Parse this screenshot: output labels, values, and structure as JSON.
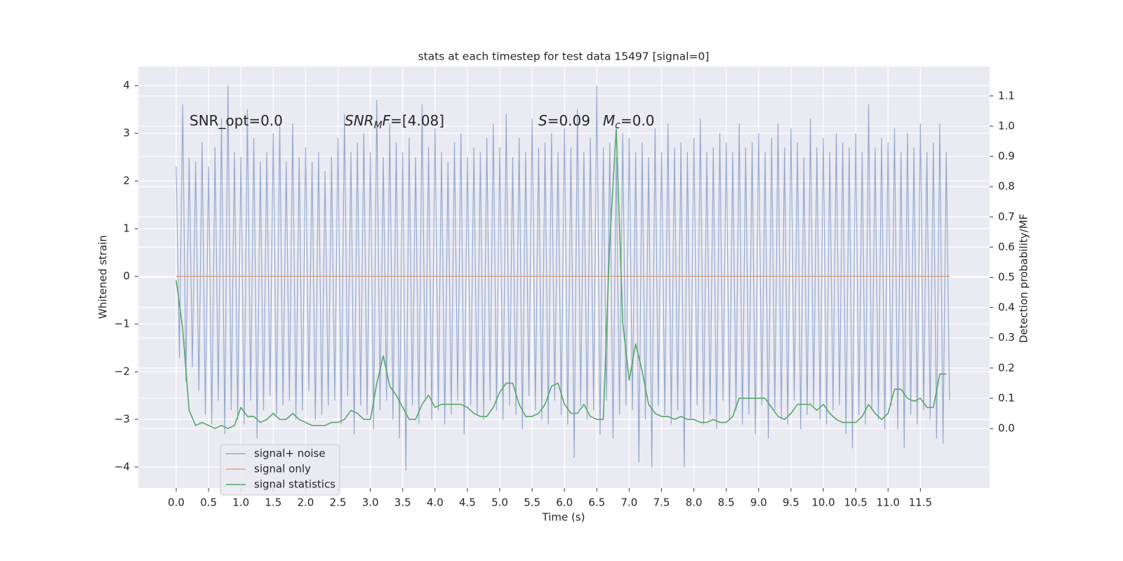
{
  "chart_data": {
    "type": "line",
    "title": "stats at each timestep for test data 15497 [signal=0]",
    "xlabel": "Time (s)",
    "ylabel": "Whitened strain",
    "y2label": "Detection probability/MF",
    "grid": true,
    "legend": "lower left",
    "annotations": [
      {
        "segments": [
          {
            "text": "SNR_opt=0.0"
          }
        ]
      },
      {
        "segments": [
          {
            "text": "SNR",
            "italic": true
          },
          {
            "text": "M",
            "italic": true,
            "sub": true
          },
          {
            "text": "F",
            "italic": true
          },
          {
            "text": "=[4.08]"
          }
        ]
      },
      {
        "segments": [
          {
            "text": "S",
            "italic": true
          },
          {
            "text": "=0.09"
          }
        ]
      },
      {
        "segments": [
          {
            "text": "M",
            "italic": true
          },
          {
            "text": "c",
            "italic": true,
            "sub": true
          },
          {
            "text": "=0.0"
          }
        ]
      }
    ],
    "xlim": [
      -0.586,
      12.57
    ],
    "ylim": [
      -4.44,
      4.4
    ],
    "y2lim": [
      -0.197,
      1.197
    ],
    "xticks": [
      {
        "value": 0,
        "label": "0.0"
      },
      0.5,
      {
        "value": 1,
        "label": "1.0"
      },
      1.5,
      {
        "value": 2,
        "label": "2.0"
      },
      2.5,
      {
        "value": 3,
        "label": "3.0"
      },
      3.5,
      {
        "value": 4,
        "label": "4.0"
      },
      4.5,
      {
        "value": 5,
        "label": "5.0"
      },
      5.5,
      {
        "value": 6,
        "label": "6.0"
      },
      6.5,
      {
        "value": 7,
        "label": "7.0"
      },
      7.5,
      {
        "value": 8,
        "label": "8.0"
      },
      8.5,
      {
        "value": 9,
        "label": "9.0"
      },
      9.5,
      {
        "value": 10,
        "label": "10.0"
      },
      10.5,
      {
        "value": 11,
        "label": "11.0"
      },
      11.5
    ],
    "yticks": [
      {
        "value": -4,
        "label": "−4"
      },
      {
        "value": -3,
        "label": "−3"
      },
      {
        "value": -2,
        "label": "−2"
      },
      {
        "value": -1,
        "label": "−1"
      },
      0,
      1,
      2,
      3,
      4
    ],
    "y2ticks": [
      {
        "value": 0,
        "label": "0.0"
      },
      0.1,
      0.2,
      0.3,
      0.4,
      0.5,
      0.6,
      0.7,
      0.8,
      0.9,
      {
        "value": 1,
        "label": "1.0"
      },
      1.1
    ],
    "series": [
      {
        "name": "signal+ noise",
        "color": "#4c72b0",
        "alpha": 0.55,
        "x": [
          0,
          0.05,
          0.1,
          0.15,
          0.2,
          0.25,
          0.3,
          0.35,
          0.4,
          0.45,
          0.5,
          0.55,
          0.6,
          0.65,
          0.7,
          0.75,
          0.8,
          0.85,
          0.9,
          0.95,
          1,
          1.05,
          1.1,
          1.15,
          1.2,
          1.25,
          1.3,
          1.35,
          1.4,
          1.45,
          1.5,
          1.55,
          1.6,
          1.65,
          1.7,
          1.75,
          1.8,
          1.85,
          1.9,
          1.95,
          2,
          2.05,
          2.1,
          2.15,
          2.2,
          2.25,
          2.3,
          2.35,
          2.4,
          2.45,
          2.5,
          2.55,
          2.6,
          2.65,
          2.7,
          2.75,
          2.8,
          2.85,
          2.9,
          2.95,
          3,
          3.05,
          3.1,
          3.15,
          3.2,
          3.25,
          3.3,
          3.35,
          3.4,
          3.45,
          3.5,
          3.55,
          3.6,
          3.65,
          3.7,
          3.75,
          3.8,
          3.85,
          3.9,
          3.95,
          4,
          4.05,
          4.1,
          4.15,
          4.2,
          4.25,
          4.3,
          4.35,
          4.4,
          4.45,
          4.5,
          4.55,
          4.6,
          4.65,
          4.7,
          4.75,
          4.8,
          4.85,
          4.9,
          4.95,
          5,
          5.05,
          5.1,
          5.15,
          5.2,
          5.25,
          5.3,
          5.35,
          5.4,
          5.45,
          5.5,
          5.55,
          5.6,
          5.65,
          5.7,
          5.75,
          5.8,
          5.85,
          5.9,
          5.95,
          6,
          6.05,
          6.1,
          6.15,
          6.2,
          6.25,
          6.3,
          6.35,
          6.4,
          6.45,
          6.5,
          6.55,
          6.6,
          6.65,
          6.7,
          6.75,
          6.8,
          6.85,
          6.9,
          6.95,
          7,
          7.05,
          7.1,
          7.15,
          7.2,
          7.25,
          7.3,
          7.35,
          7.4,
          7.45,
          7.5,
          7.55,
          7.6,
          7.65,
          7.7,
          7.75,
          7.8,
          7.85,
          7.9,
          7.95,
          8,
          8.05,
          8.1,
          8.15,
          8.2,
          8.25,
          8.3,
          8.35,
          8.4,
          8.45,
          8.5,
          8.55,
          8.6,
          8.65,
          8.7,
          8.75,
          8.8,
          8.85,
          8.9,
          8.95,
          9,
          9.05,
          9.1,
          9.15,
          9.2,
          9.25,
          9.3,
          9.35,
          9.4,
          9.45,
          9.5,
          9.55,
          9.6,
          9.65,
          9.7,
          9.75,
          9.8,
          9.85,
          9.9,
          9.95,
          10,
          10.05,
          10.1,
          10.15,
          10.2,
          10.25,
          10.3,
          10.35,
          10.4,
          10.45,
          10.5,
          10.55,
          10.6,
          10.65,
          10.7,
          10.75,
          10.8,
          10.85,
          10.9,
          10.95,
          11,
          11.05,
          11.1,
          11.15,
          11.2,
          11.25,
          11.3,
          11.35,
          11.4,
          11.45,
          11.5,
          11.55,
          11.6,
          11.65,
          11.7,
          11.75,
          11.8,
          11.85,
          11.9,
          11.95
        ],
        "values": [
          2.3,
          -1.7,
          3.6,
          -2.2,
          2.5,
          -1.9,
          2.4,
          -2.4,
          2.8,
          -2.9,
          2.3,
          -3.1,
          2.7,
          -2.6,
          3.3,
          -3.3,
          4.0,
          -2.8,
          2.6,
          -3.0,
          2.5,
          -3.1,
          3.5,
          -2.6,
          2.9,
          -3.4,
          2.4,
          -2.8,
          2.6,
          -2.5,
          3.0,
          -2.9,
          3.2,
          -2.7,
          2.4,
          -2.6,
          3.2,
          -3.0,
          2.5,
          -2.8,
          2.7,
          -2.4,
          2.4,
          -3.0,
          2.6,
          -2.9,
          2.2,
          -2.7,
          2.5,
          -2.6,
          2.9,
          -3.1,
          3.4,
          -2.5,
          2.6,
          -3.3,
          2.8,
          -2.7,
          3.0,
          -2.9,
          2.6,
          -3.2,
          3.7,
          -2.8,
          2.5,
          -2.6,
          3.2,
          -3.0,
          2.8,
          -3.4,
          2.6,
          -4.07,
          2.9,
          -2.7,
          2.5,
          -3.1,
          3.6,
          -2.6,
          2.7,
          -3.0,
          3.1,
          -2.8,
          2.6,
          -3.1,
          2.4,
          -2.9,
          2.8,
          -2.6,
          3.0,
          -3.3,
          2.5,
          -2.7,
          2.7,
          -2.9,
          2.6,
          -3.0,
          2.9,
          -2.6,
          3.2,
          -2.8,
          2.7,
          -3.0,
          3.4,
          -2.7,
          2.5,
          -2.9,
          2.9,
          -3.2,
          2.6,
          -2.5,
          3.3,
          -2.8,
          2.7,
          -3.0,
          2.8,
          -3.1,
          3.0,
          -2.6,
          2.6,
          -2.9,
          3.1,
          -3.1,
          2.7,
          -3.8,
          3.5,
          -2.7,
          2.6,
          -3.0,
          2.9,
          -2.8,
          4.0,
          -3.3,
          2.7,
          -2.6,
          2.8,
          -3.4,
          2.5,
          -2.9,
          3.0,
          -2.7,
          2.9,
          -2.8,
          2.6,
          -3.9,
          2.8,
          -3.0,
          2.5,
          -4.0,
          3.1,
          -2.7,
          2.6,
          -2.9,
          3.2,
          -3.1,
          2.7,
          -2.8,
          2.8,
          -4.0,
          2.6,
          -3.0,
          2.9,
          -2.7,
          3.3,
          -3.1,
          2.6,
          -2.9,
          2.7,
          -3.2,
          3.0,
          -2.6,
          2.8,
          -3.0,
          2.6,
          -2.8,
          3.2,
          -3.1,
          2.7,
          -2.9,
          2.8,
          -3.3,
          3.0,
          -2.7,
          2.6,
          -3.4,
          2.9,
          -2.8,
          3.2,
          -3.0,
          2.7,
          -3.1,
          3.1,
          -2.6,
          2.8,
          -3.2,
          2.5,
          -2.9,
          3.3,
          -2.7,
          2.7,
          -3.0,
          2.9,
          -3.1,
          2.6,
          -2.8,
          3.0,
          -2.7,
          2.8,
          -3.3,
          2.7,
          -3.6,
          3.0,
          -2.9,
          2.6,
          -3.1,
          3.6,
          -2.8,
          2.7,
          -3.0,
          2.9,
          -3.2,
          2.8,
          -2.7,
          3.1,
          -3.2,
          2.6,
          -3.6,
          3.0,
          -2.9,
          2.7,
          -3.1,
          3.2,
          -2.8,
          2.6,
          -3.0,
          2.8,
          -3.4,
          3.2,
          -3.5,
          2.6,
          -2.6
        ]
      },
      {
        "name": "signal only",
        "color": "#dd8452",
        "alpha": 0.7,
        "x": [
          0,
          11.95
        ],
        "values": [
          0,
          0
        ]
      },
      {
        "name": "signal statistics",
        "color": "#55a868",
        "alpha": 1,
        "axis": "y2",
        "x": [
          0,
          0.1,
          0.2,
          0.3,
          0.4,
          0.5,
          0.6,
          0.7,
          0.8,
          0.9,
          1,
          1.1,
          1.2,
          1.3,
          1.4,
          1.5,
          1.6,
          1.7,
          1.8,
          1.9,
          2,
          2.1,
          2.2,
          2.3,
          2.4,
          2.5,
          2.6,
          2.7,
          2.8,
          2.9,
          3,
          3.1,
          3.2,
          3.3,
          3.4,
          3.5,
          3.6,
          3.7,
          3.8,
          3.9,
          4,
          4.1,
          4.2,
          4.3,
          4.4,
          4.5,
          4.6,
          4.7,
          4.8,
          4.9,
          5,
          5.1,
          5.2,
          5.3,
          5.4,
          5.5,
          5.6,
          5.7,
          5.8,
          5.9,
          6,
          6.1,
          6.2,
          6.3,
          6.4,
          6.5,
          6.6,
          6.7,
          6.8,
          6.9,
          7,
          7.1,
          7.2,
          7.3,
          7.4,
          7.5,
          7.6,
          7.7,
          7.8,
          7.9,
          8,
          8.1,
          8.2,
          8.3,
          8.4,
          8.5,
          8.6,
          8.7,
          8.8,
          8.9,
          9,
          9.1,
          9.2,
          9.3,
          9.4,
          9.5,
          9.6,
          9.7,
          9.8,
          9.9,
          10,
          10.1,
          10.2,
          10.3,
          10.4,
          10.5,
          10.6,
          10.7,
          10.8,
          10.9,
          11,
          11.1,
          11.2,
          11.3,
          11.4,
          11.5,
          11.6,
          11.7,
          11.8,
          11.9
        ],
        "values": [
          0.49,
          0.33,
          0.06,
          0.01,
          0.02,
          0.01,
          0.0,
          0.01,
          0.0,
          0.01,
          0.07,
          0.04,
          0.04,
          0.02,
          0.03,
          0.05,
          0.03,
          0.03,
          0.05,
          0.03,
          0.02,
          0.01,
          0.01,
          0.01,
          0.02,
          0.02,
          0.03,
          0.06,
          0.05,
          0.03,
          0.03,
          0.15,
          0.24,
          0.14,
          0.11,
          0.07,
          0.03,
          0.03,
          0.08,
          0.11,
          0.07,
          0.08,
          0.08,
          0.08,
          0.08,
          0.07,
          0.05,
          0.04,
          0.04,
          0.07,
          0.12,
          0.15,
          0.15,
          0.08,
          0.04,
          0.04,
          0.05,
          0.08,
          0.14,
          0.15,
          0.08,
          0.05,
          0.05,
          0.08,
          0.04,
          0.03,
          0.03,
          0.62,
          0.99,
          0.35,
          0.16,
          0.28,
          0.19,
          0.08,
          0.05,
          0.04,
          0.04,
          0.03,
          0.04,
          0.03,
          0.03,
          0.02,
          0.02,
          0.03,
          0.02,
          0.02,
          0.04,
          0.1,
          0.1,
          0.1,
          0.1,
          0.1,
          0.07,
          0.04,
          0.03,
          0.05,
          0.08,
          0.08,
          0.08,
          0.06,
          0.08,
          0.05,
          0.03,
          0.02,
          0.02,
          0.02,
          0.04,
          0.08,
          0.05,
          0.03,
          0.05,
          0.13,
          0.13,
          0.1,
          0.09,
          0.1,
          0.07,
          0.07,
          0.18,
          0.18
        ]
      }
    ]
  }
}
